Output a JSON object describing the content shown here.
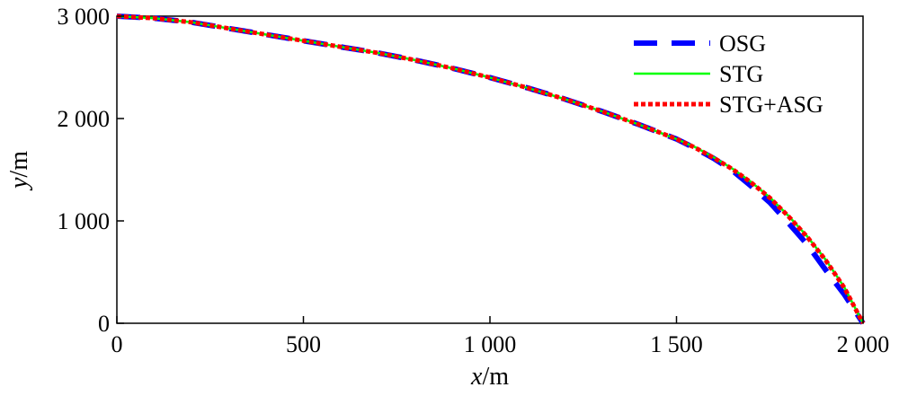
{
  "chart_data": {
    "type": "line",
    "title": "",
    "xlabel": {
      "var": "x",
      "unit": "/m"
    },
    "ylabel": {
      "var": "y",
      "unit": "/m"
    },
    "xlim": [
      0,
      2000
    ],
    "ylim": [
      0,
      3000
    ],
    "xticks": [
      0,
      500,
      1000,
      1500,
      2000
    ],
    "yticks": [
      0,
      1000,
      2000,
      3000
    ],
    "xtick_labels": [
      "0",
      "500",
      "1 000",
      "1 500",
      "2 000"
    ],
    "ytick_labels": [
      "0",
      "1 000",
      "2 000",
      "3 000"
    ],
    "grid": false,
    "legend_position": "top-right",
    "series": [
      {
        "name": "OSG",
        "style": "dashed",
        "color": "#0000ff",
        "x": [
          0,
          100,
          200,
          300,
          400,
          500,
          600,
          700,
          800,
          900,
          1000,
          1100,
          1200,
          1300,
          1400,
          1500,
          1550,
          1600,
          1650,
          1700,
          1750,
          1800,
          1850,
          1900,
          1950,
          2000
        ],
        "y": [
          3000,
          2980,
          2940,
          2880,
          2820,
          2760,
          2700,
          2640,
          2570,
          2490,
          2400,
          2300,
          2190,
          2070,
          1940,
          1800,
          1710,
          1610,
          1490,
          1340,
          1180,
          980,
          770,
          520,
          280,
          0
        ]
      },
      {
        "name": "STG",
        "style": "solid",
        "color": "#00ff00",
        "x": [
          0,
          100,
          200,
          300,
          400,
          500,
          600,
          700,
          800,
          900,
          1000,
          1100,
          1200,
          1300,
          1400,
          1500,
          1550,
          1600,
          1650,
          1700,
          1750,
          1800,
          1850,
          1900,
          1950,
          2000
        ],
        "y": [
          3000,
          2980,
          2940,
          2880,
          2820,
          2760,
          2700,
          2640,
          2570,
          2490,
          2400,
          2300,
          2190,
          2070,
          1940,
          1800,
          1720,
          1620,
          1510,
          1380,
          1230,
          1050,
          850,
          620,
          350,
          0
        ]
      },
      {
        "name": "STG+ASG",
        "style": "dotted",
        "color": "#ff0000",
        "x": [
          0,
          100,
          200,
          300,
          400,
          500,
          600,
          700,
          800,
          900,
          1000,
          1100,
          1200,
          1300,
          1400,
          1500,
          1550,
          1600,
          1650,
          1700,
          1750,
          1800,
          1850,
          1900,
          1950,
          2000
        ],
        "y": [
          3000,
          2980,
          2940,
          2880,
          2820,
          2760,
          2700,
          2640,
          2570,
          2490,
          2400,
          2300,
          2190,
          2070,
          1940,
          1800,
          1715,
          1615,
          1505,
          1375,
          1225,
          1045,
          845,
          615,
          345,
          0
        ]
      }
    ]
  }
}
